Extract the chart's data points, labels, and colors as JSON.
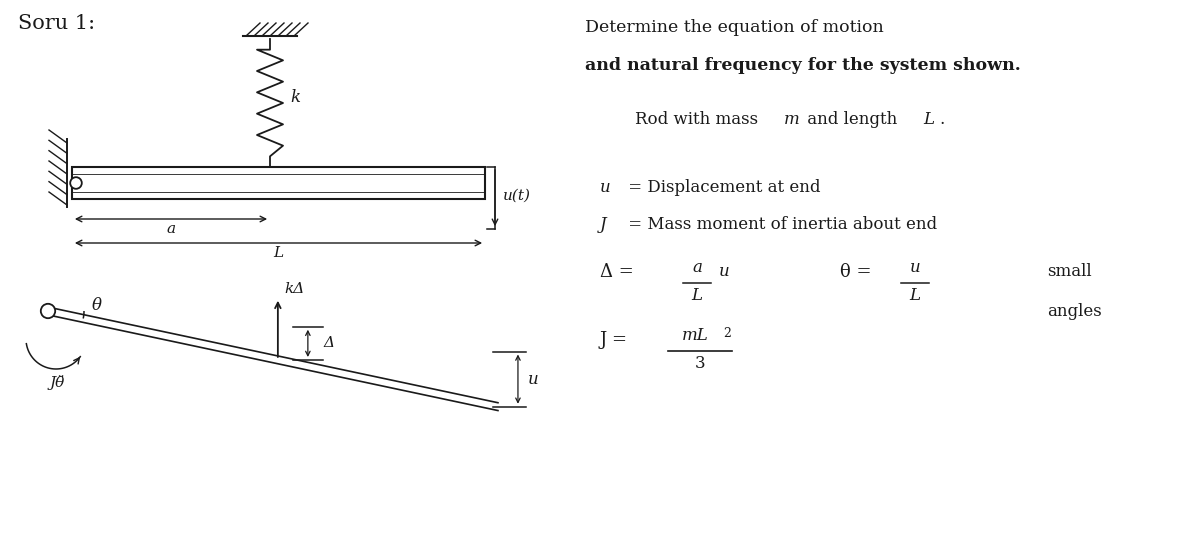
{
  "background_color": "#ffffff",
  "text_color": "#1a1a1a",
  "line_color": "#1a1a1a",
  "title": "Soru 1:",
  "right_line1": "Determine the equation of motion",
  "right_line2": "and natural frequency for the system shown.",
  "rod_text": "Rod with mass ",
  "rod_m": "m",
  "rod_mid": " and length ",
  "rod_L": "L",
  "rod_dot": ".",
  "u_label": "u",
  "u_rest": " = Displacement at end",
  "J_label": "J",
  "J_rest": " = Mass moment of inertia about end",
  "delta_sym": "Δ",
  "equals": " = ",
  "frac_a_num": "a",
  "frac_a_den": "L",
  "frac_u_num": "u",
  "frac_u_den": "L",
  "u_var": "u",
  "theta_sym": "θ",
  "small_text": "small",
  "angles_text": "angles",
  "J_eq": "J = ",
  "mL2": "mL",
  "sup2": "2",
  "denom3": "3",
  "k_label": "k",
  "ut_label": "u(t)",
  "a_label": "a",
  "L_label": "L",
  "kDelta_label": "kΔ",
  "Delta_label": "Δ",
  "theta_label": "θ",
  "Jtheta_label": "Jθ̈",
  "u_fbd": "u"
}
